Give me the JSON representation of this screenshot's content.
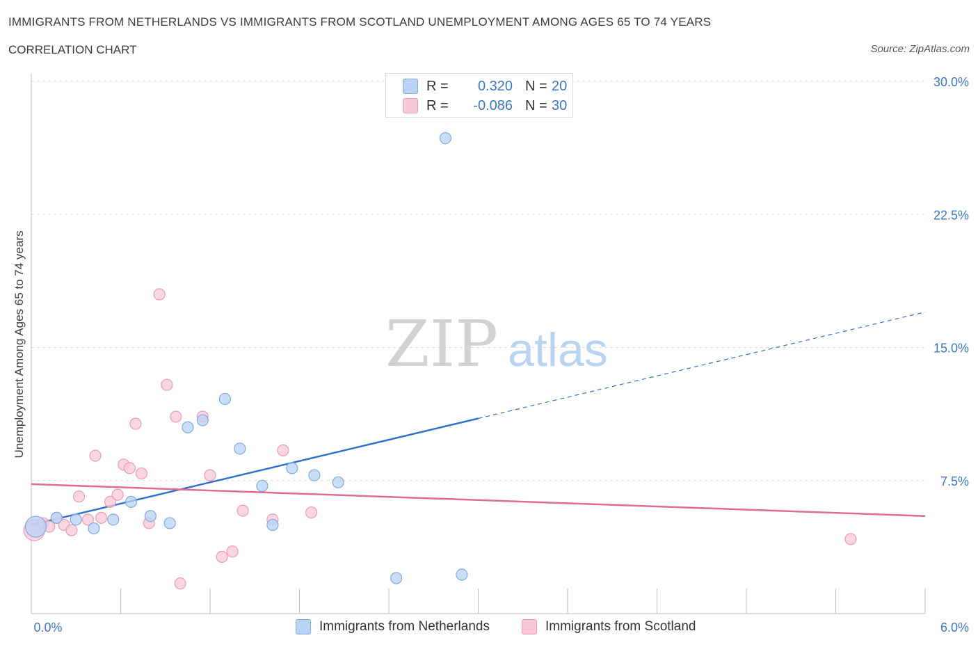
{
  "header": {
    "title": "IMMIGRANTS FROM NETHERLANDS VS IMMIGRANTS FROM SCOTLAND UNEMPLOYMENT AMONG AGES 65 TO 74 YEARS",
    "subtitle": "CORRELATION CHART",
    "source": "Source: ZipAtlas.com"
  },
  "watermark": {
    "zip": "ZIP",
    "atlas": "atlas"
  },
  "legend": {
    "rows": [
      {
        "r_label": "R =",
        "r_value": "0.320",
        "n_label": "N =",
        "n_value": "20"
      },
      {
        "r_label": "R =",
        "r_value": "-0.086",
        "n_label": "N =",
        "n_value": "30"
      }
    ]
  },
  "colors": {
    "netherlands_fill": "#b9d3f5",
    "netherlands_stroke": "#7fa9e0",
    "netherlands_line": "#2f6fcf",
    "scotland_fill": "#f7c9d7",
    "scotland_stroke": "#ee9ab5",
    "scotland_line": "#e06c95",
    "tick_label": "#3a78c9",
    "grid": "#dcdcdc"
  },
  "chart_data": {
    "type": "scatter",
    "title": "IMMIGRANTS FROM NETHERLANDS VS IMMIGRANTS FROM SCOTLAND UNEMPLOYMENT AMONG AGES 65 TO 74 YEARS",
    "xlabel": "",
    "ylabel": "Unemployment Among Ages 65 to 74 years",
    "xlim": [
      0,
      6
    ],
    "ylim": [
      0,
      30
    ],
    "x_tick_labels": [
      "0.0%",
      "6.0%"
    ],
    "y_ticks": [
      {
        "value": 7.5,
        "label": "7.5%"
      },
      {
        "value": 15,
        "label": "15.0%"
      },
      {
        "value": 22.5,
        "label": "22.5%"
      },
      {
        "value": 30,
        "label": "30.0%"
      }
    ],
    "grid": true,
    "legend_position": "bottom",
    "series": [
      {
        "name": "Immigrants from Netherlands",
        "r": 0.32,
        "n": 20,
        "points": [
          [
            0.03,
            4.9
          ],
          [
            0.17,
            5.4
          ],
          [
            0.3,
            5.3
          ],
          [
            0.42,
            4.8
          ],
          [
            0.55,
            5.3
          ],
          [
            0.67,
            6.3
          ],
          [
            0.8,
            5.5
          ],
          [
            0.93,
            5.1
          ],
          [
            1.05,
            10.5
          ],
          [
            1.15,
            10.9
          ],
          [
            1.3,
            12.1
          ],
          [
            1.4,
            9.3
          ],
          [
            1.55,
            7.2
          ],
          [
            1.62,
            5.0
          ],
          [
            1.75,
            8.2
          ],
          [
            1.9,
            7.8
          ],
          [
            2.06,
            7.4
          ],
          [
            2.45,
            2.0
          ],
          [
            2.78,
            26.8
          ],
          [
            2.89,
            2.2
          ]
        ],
        "trend": {
          "x0": 0,
          "y0": 5.0,
          "x1": 3.0,
          "y1": 11.0,
          "x_ext": 6.0,
          "y_ext": 17.0
        }
      },
      {
        "name": "Immigrants from Scotland",
        "r": -0.086,
        "n": 30,
        "points": [
          [
            0.02,
            4.7
          ],
          [
            0.08,
            5.1
          ],
          [
            0.12,
            4.9
          ],
          [
            0.17,
            5.4
          ],
          [
            0.22,
            5.0
          ],
          [
            0.27,
            4.7
          ],
          [
            0.32,
            6.6
          ],
          [
            0.38,
            5.3
          ],
          [
            0.43,
            8.9
          ],
          [
            0.47,
            5.4
          ],
          [
            0.53,
            6.3
          ],
          [
            0.58,
            6.7
          ],
          [
            0.62,
            8.4
          ],
          [
            0.66,
            8.2
          ],
          [
            0.7,
            10.7
          ],
          [
            0.74,
            7.9
          ],
          [
            0.79,
            5.1
          ],
          [
            0.86,
            18.0
          ],
          [
            0.91,
            12.9
          ],
          [
            0.97,
            11.1
          ],
          [
            1.0,
            1.7
          ],
          [
            1.15,
            11.1
          ],
          [
            1.2,
            7.8
          ],
          [
            1.28,
            3.2
          ],
          [
            1.35,
            3.5
          ],
          [
            1.42,
            5.8
          ],
          [
            1.62,
            5.3
          ],
          [
            1.69,
            9.2
          ],
          [
            1.88,
            5.7
          ],
          [
            5.5,
            4.2
          ]
        ],
        "trend": {
          "x0": 0,
          "y0": 7.3,
          "x1": 6.0,
          "y1": 5.5
        }
      }
    ]
  }
}
